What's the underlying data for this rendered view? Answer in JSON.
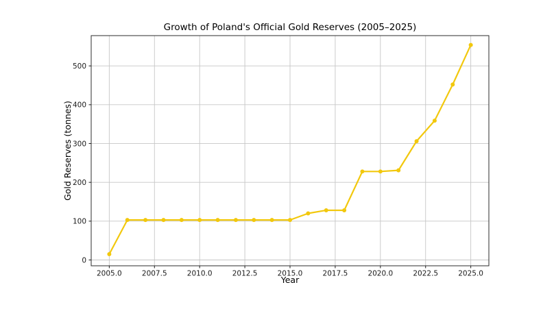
{
  "figure": {
    "background": "#ffffff",
    "plot_background": "#ffffff",
    "spine_color": "#2b2b2b",
    "tick_color": "#1a1a1a"
  },
  "chart_data": {
    "type": "line",
    "title": "Growth of Poland's Official Gold Reserves (2005–2025)",
    "xlabel": "Year",
    "ylabel": "Gold Reserves (tonnes)",
    "series": [
      {
        "name": "Gold Reserves",
        "color": "#F2C80D",
        "marker": "circle",
        "marker_radius": 3,
        "line_width": 2.2,
        "x": [
          2005,
          2006,
          2007,
          2008,
          2009,
          2010,
          2011,
          2012,
          2013,
          2014,
          2015,
          2016,
          2017,
          2018,
          2019,
          2020,
          2021,
          2022,
          2023,
          2024,
          2025
        ],
        "y": [
          15,
          103,
          103,
          103,
          103,
          103,
          103,
          103,
          103,
          103,
          103,
          120,
          128,
          128,
          228,
          228,
          231,
          306,
          359,
          452,
          554
        ]
      }
    ],
    "xlim": [
      2004,
      2026
    ],
    "ylim": [
      -15,
      578
    ],
    "x_ticks": [
      2005,
      2007.5,
      2010,
      2012.5,
      2015,
      2017.5,
      2020,
      2022.5,
      2025
    ],
    "x_tick_labels": [
      "2005.0",
      "2007.5",
      "2010.0",
      "2012.5",
      "2015.0",
      "2017.5",
      "2020.0",
      "2022.5",
      "2025.0"
    ],
    "y_ticks": [
      0,
      100,
      200,
      300,
      400,
      500
    ],
    "y_tick_labels": [
      "0",
      "100",
      "200",
      "300",
      "400",
      "500"
    ],
    "grid": true,
    "grid_color": "#c6c6c6",
    "legend": "none"
  }
}
